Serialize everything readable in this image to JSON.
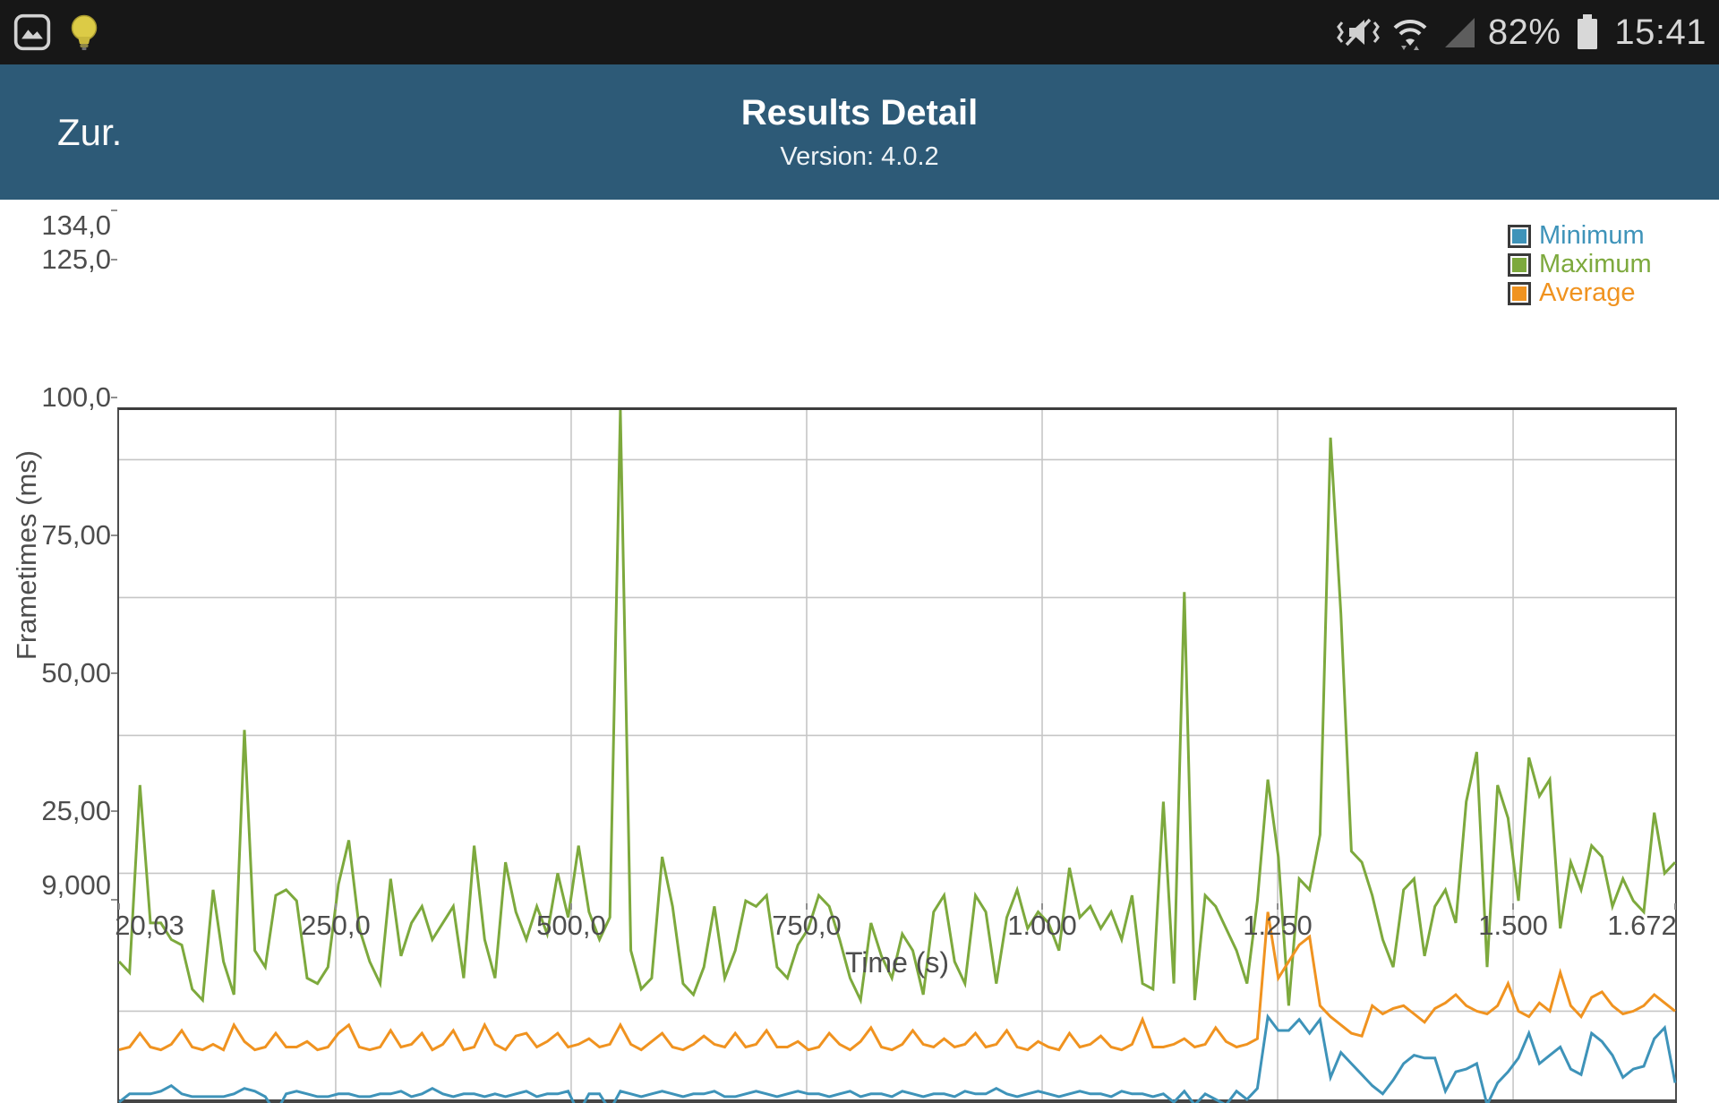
{
  "status_bar": {
    "time": "15:41",
    "battery_percent": "82%",
    "left_icons": [
      "gallery-icon",
      "lightbulb-icon"
    ],
    "right_icons": [
      "vibrate-mute-icon",
      "wifi-icon",
      "signal-icon",
      "battery-icon"
    ]
  },
  "header": {
    "back_label": "Zur.",
    "title": "Results Detail",
    "subtitle": "Version: 4.0.2"
  },
  "colors": {
    "statusbar_bg": "#171717",
    "header_bg": "#2d5a77",
    "grid": "#c6c6c6",
    "axis_text": "#4d4d4d",
    "minimum": "#3e93b9",
    "maximum": "#7da93d",
    "average": "#f09320"
  },
  "chart_data": {
    "type": "line",
    "title": "",
    "xlabel": "Time (s)",
    "ylabel": "Frametimes (ms)",
    "grid": true,
    "legend_position": "top-right",
    "x_axis": {
      "min": 20.03,
      "max": 1672,
      "tick_values": [
        20.03,
        250,
        500,
        750,
        1000,
        1250,
        1500,
        1672
      ],
      "tick_labels": [
        "20,03",
        "250,0",
        "500,0",
        "750,0",
        "1.000",
        "1.250",
        "1.500",
        "1.672"
      ],
      "gridline_values": [
        250,
        500,
        750,
        1000,
        1250,
        1500
      ]
    },
    "y_axis": {
      "min": 9,
      "max": 134,
      "tick_values": [
        134,
        125,
        100,
        75,
        50,
        25,
        9
      ],
      "tick_labels": [
        "134,0",
        "125,0",
        "100,0",
        "75,00",
        "50,00",
        "25,00",
        "9,000"
      ],
      "gridline_values": [
        125,
        100,
        75,
        50,
        25
      ]
    },
    "series": [
      {
        "name": "Minimum",
        "color": "#3e93b9",
        "values": [
          8.5,
          10,
          10,
          10,
          10.5,
          11.5,
          10,
          9.5,
          9.5,
          9.5,
          9.5,
          10,
          11,
          10.5,
          9.5,
          6.5,
          10,
          10.5,
          10,
          9.5,
          9.5,
          10,
          10,
          9.5,
          9.5,
          10,
          10,
          10.5,
          9.5,
          10,
          11,
          10,
          9.5,
          10,
          10,
          9.5,
          10,
          9.5,
          10,
          10.5,
          9.5,
          10,
          10,
          10.5,
          6.5,
          10,
          10,
          7,
          10.5,
          10,
          9.5,
          10,
          10.5,
          10,
          9.5,
          10,
          10,
          10.5,
          9.5,
          9.5,
          10,
          10.5,
          10,
          9.5,
          10,
          10.5,
          10,
          10,
          9.5,
          10,
          10.5,
          9.5,
          10,
          10,
          9.5,
          10.5,
          10,
          9.5,
          10,
          10,
          9.5,
          10.5,
          10,
          10,
          11,
          10,
          9.5,
          10,
          10.5,
          10,
          9.5,
          10,
          10.5,
          10,
          10,
          9.5,
          10.5,
          10,
          10,
          9.5,
          10,
          8.5,
          10.5,
          8,
          10,
          9,
          8,
          10.5,
          9,
          11,
          24,
          21.5,
          21.5,
          23.5,
          21,
          23.5,
          13,
          17.5,
          15.5,
          13.5,
          11.5,
          10,
          12.5,
          15.5,
          17,
          16.5,
          16.5,
          10.5,
          14,
          14.5,
          15.5,
          8,
          12,
          14,
          16.5,
          21,
          15.5,
          17,
          18.5,
          14.5,
          13.5,
          21,
          19.5,
          17,
          13,
          14.5,
          15,
          20,
          22,
          12
        ]
      },
      {
        "name": "Maximum",
        "color": "#7da93d",
        "values": [
          34,
          32,
          66,
          41,
          41,
          38,
          37,
          29,
          27,
          47,
          34,
          28,
          76,
          36,
          33,
          46,
          47,
          45,
          31,
          30,
          33,
          48,
          56,
          40,
          34,
          30,
          49,
          35,
          41,
          44,
          38,
          41,
          44,
          31,
          55,
          38,
          31,
          52,
          43,
          38,
          44,
          39,
          50,
          42,
          55,
          43,
          38,
          42,
          134,
          36,
          29,
          31,
          53,
          44,
          30,
          28,
          33,
          44,
          31,
          36,
          45,
          44,
          46,
          33,
          31,
          37,
          40,
          46,
          44,
          38,
          31,
          27,
          41,
          35,
          31,
          39,
          36,
          28,
          43,
          46,
          34,
          30,
          46,
          43,
          30,
          42,
          47,
          40,
          43,
          41,
          36,
          51,
          42,
          44,
          40,
          43,
          38,
          46,
          30,
          29,
          63,
          30,
          101,
          27,
          46,
          44,
          40,
          36,
          30,
          45,
          67,
          53,
          26,
          49,
          47,
          57,
          129,
          97,
          54,
          52,
          46,
          38,
          33,
          47,
          49,
          35,
          44,
          47,
          41,
          63,
          72,
          33,
          66,
          60,
          45,
          71,
          64,
          67,
          40,
          52,
          47,
          55,
          53,
          44,
          49,
          45,
          43,
          61,
          50,
          52
        ]
      },
      {
        "name": "Average",
        "color": "#f09320",
        "values": [
          18,
          18.5,
          21,
          18.5,
          18,
          19,
          21.5,
          18.5,
          18,
          19,
          18,
          22.5,
          19.5,
          18,
          18.5,
          21,
          18.5,
          18.5,
          19.5,
          18,
          18.5,
          21,
          22.5,
          18.5,
          18,
          18.5,
          21.5,
          18.5,
          19,
          21,
          18,
          19,
          21.5,
          18,
          18.5,
          22.5,
          19,
          18,
          20.5,
          21,
          18.5,
          19.5,
          21,
          18.5,
          19,
          20,
          18.5,
          19,
          22.5,
          19,
          18,
          19.5,
          21,
          18.5,
          18,
          19,
          20.5,
          19,
          18.5,
          21,
          18.5,
          19,
          21.5,
          18.5,
          18.5,
          19.5,
          18,
          18.5,
          21,
          19,
          18,
          19.5,
          22,
          18.5,
          18,
          19,
          21.5,
          19,
          18.5,
          20,
          18.5,
          19,
          21,
          18.5,
          19,
          21.5,
          18.5,
          18,
          19.5,
          18.5,
          18,
          21,
          18.5,
          19,
          20.5,
          18.5,
          18,
          19,
          23.5,
          18.5,
          18.5,
          19,
          20,
          18.5,
          19,
          22,
          19.5,
          18.5,
          19,
          20,
          43,
          31,
          34,
          37,
          38.5,
          26,
          24,
          22.5,
          21,
          20.5,
          26,
          24.5,
          25.5,
          26,
          24.5,
          23,
          25.5,
          26.5,
          28,
          26,
          25,
          24.5,
          26,
          30,
          25,
          24,
          26.5,
          25,
          32,
          26,
          24,
          27.5,
          28.5,
          26,
          24.5,
          25,
          26,
          28,
          26.5,
          25
        ]
      }
    ],
    "legend": [
      {
        "name": "Minimum",
        "color": "#3e93b9"
      },
      {
        "name": "Maximum",
        "color": "#7da93d"
      },
      {
        "name": "Average",
        "color": "#f09320"
      }
    ]
  }
}
